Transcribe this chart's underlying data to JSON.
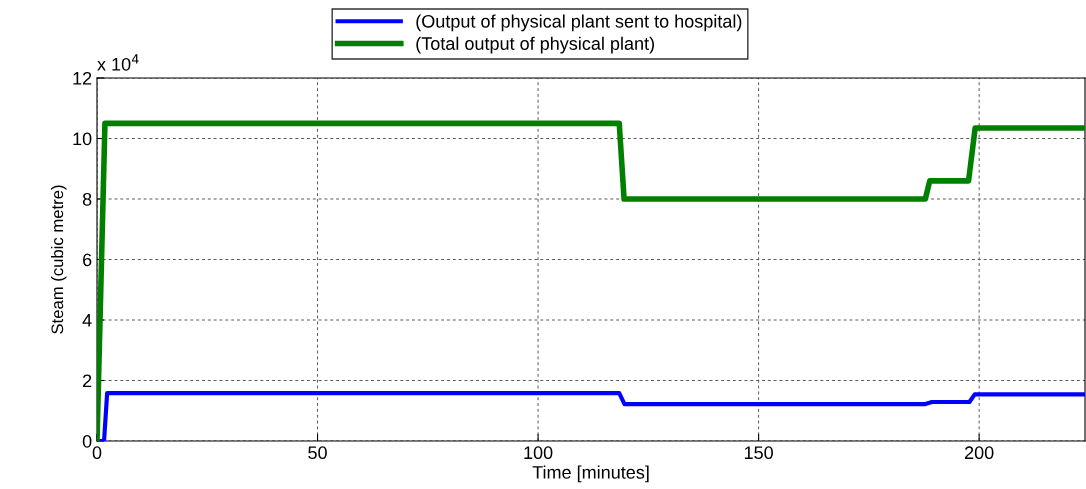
{
  "chart_data": {
    "type": "line",
    "xlabel": "Time [minutes]",
    "ylabel": "Steam (cubic metre)",
    "annotations": [
      "x 10$^{4}$"
    ],
    "xlim": [
      0,
      224
    ],
    "xticks": [
      0,
      50,
      100,
      150,
      200
    ],
    "ylim": [
      0,
      12
    ],
    "yticks": [
      0,
      2,
      4,
      6,
      8,
      10,
      12
    ],
    "grid": true,
    "legend": "top",
    "marker": "none",
    "line_style": "solid",
    "series": [
      {
        "name": "(Output of physical plant sent to hospital)",
        "color": "#0000ff",
        "x": [
          0,
          1.6,
          2.3,
          118.4,
          119.6,
          187.8,
          189.3,
          197.8,
          199,
          224
        ],
        "values": [
          0,
          0,
          1.58,
          1.58,
          1.22,
          1.22,
          1.29,
          1.29,
          1.54,
          1.54
        ]
      },
      {
        "name": "(Total output of physical plant)",
        "color": "#008000",
        "x": [
          0,
          1.8,
          118.4,
          119.5,
          187.8,
          188.8,
          197.6,
          199.1,
          224
        ],
        "values": [
          0,
          10.5,
          10.5,
          8,
          8,
          8.6,
          8.6,
          10.35,
          10.35
        ]
      }
    ]
  }
}
